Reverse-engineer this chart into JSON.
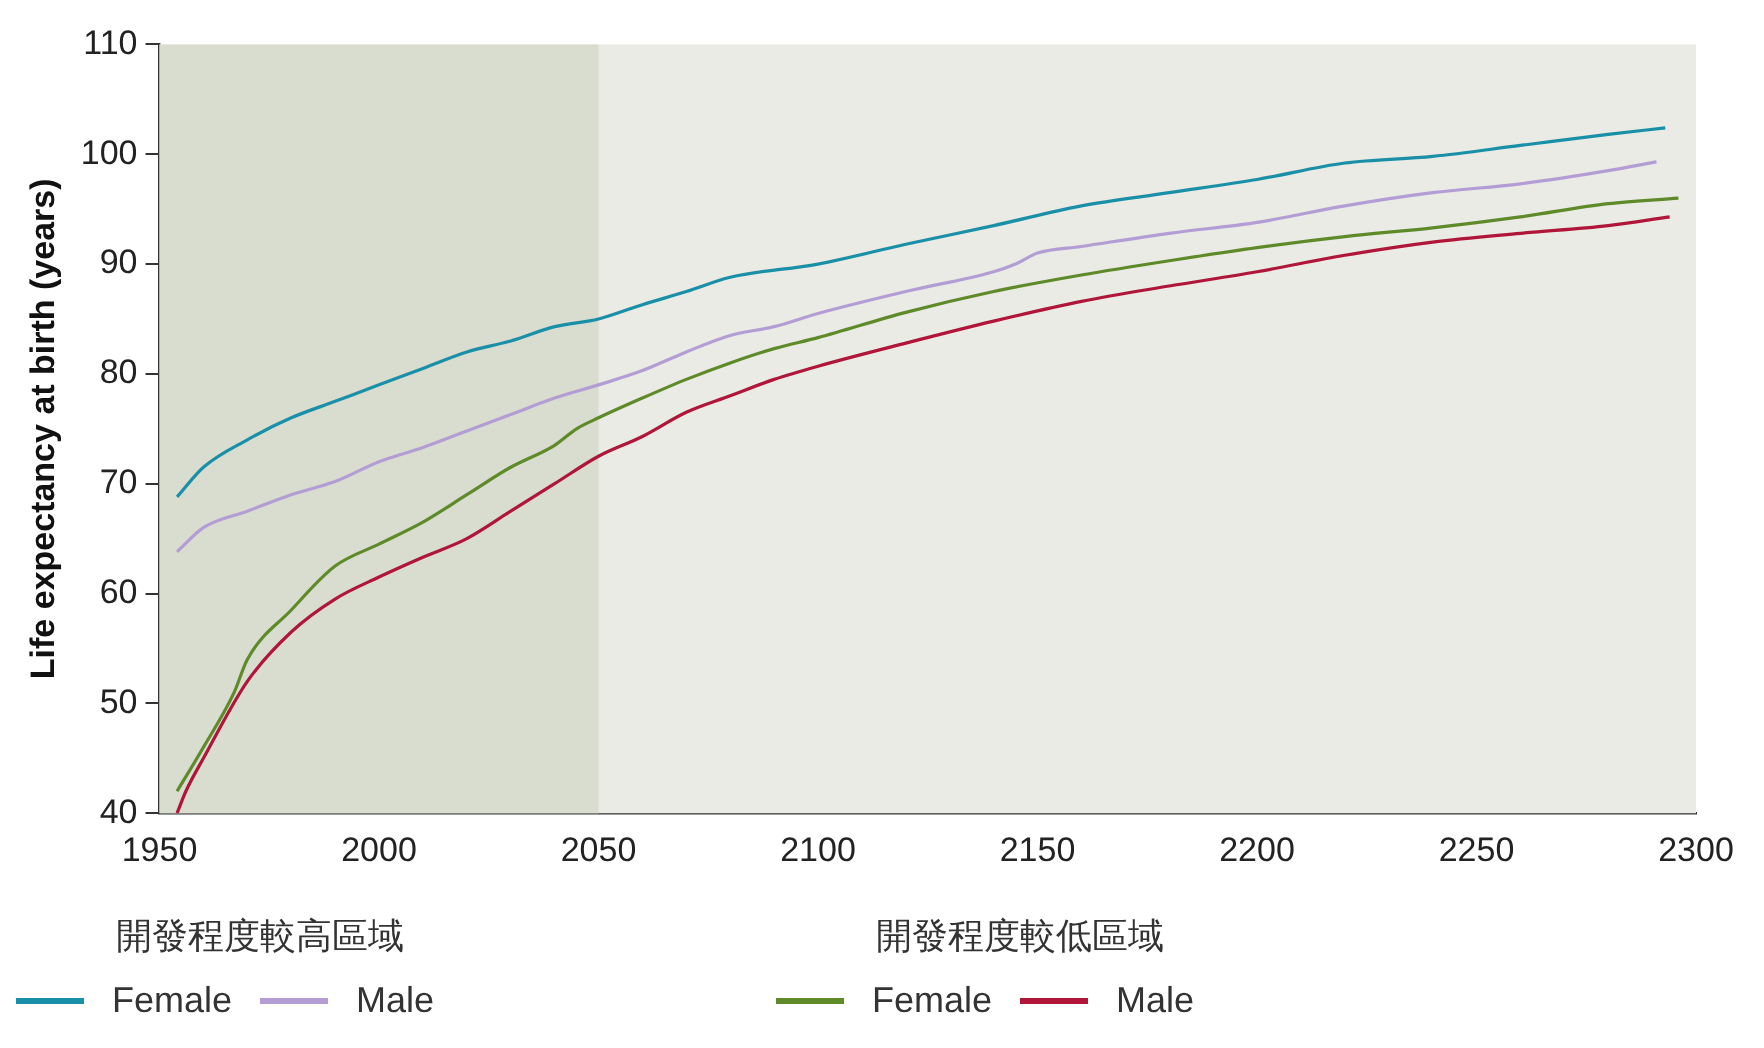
{
  "chart_data": {
    "type": "line",
    "ylabel": "Life expectancy at birth (years)",
    "xlim": [
      1950,
      2300
    ],
    "xticks": [
      1950,
      2000,
      2050,
      2100,
      2150,
      2200,
      2250,
      2300
    ],
    "ylim": [
      40,
      110
    ],
    "yticks": [
      40,
      50,
      60,
      70,
      80,
      90,
      100,
      110
    ],
    "grid": false,
    "legend": "bottom",
    "marker": "none",
    "line_style": "solid",
    "annotations": [
      "開發程度較高區域",
      "開發程度較低區域"
    ],
    "bands": [
      {
        "axis": "x",
        "from": 1950,
        "to": 2050,
        "color": "#d9ddcf"
      }
    ],
    "series": [
      {
        "name": "Female",
        "color": "#1a8fa8",
        "x": [
          1954,
          1960,
          1970,
          1980,
          1990,
          2000,
          2010,
          2020,
          2030,
          2040,
          2050,
          2060,
          2070,
          2080,
          2100,
          2120,
          2140,
          2160,
          2180,
          2200,
          2220,
          2240,
          2260,
          2280,
          2293
        ],
        "values": [
          68.8,
          71.5,
          74,
          76,
          77.5,
          79,
          80.5,
          82,
          83,
          84.3,
          85,
          86.3,
          87.5,
          88.8,
          90,
          91.8,
          93.5,
          95.3,
          96.5,
          97.7,
          99.2,
          99.8,
          100.8,
          101.8,
          102.4
        ]
      },
      {
        "name": "Male",
        "color": "#b39dd4",
        "x": [
          1954,
          1960,
          1970,
          1980,
          1990,
          2000,
          2010,
          2020,
          2030,
          2040,
          2050,
          2060,
          2070,
          2080,
          2090,
          2100,
          2120,
          2140,
          2145,
          2150,
          2160,
          2180,
          2200,
          2220,
          2240,
          2260,
          2280,
          2291
        ],
        "values": [
          63.8,
          66,
          67.5,
          69,
          70.2,
          72,
          73.3,
          74.8,
          76.3,
          77.8,
          79,
          80.3,
          82,
          83.5,
          84.3,
          85.5,
          87.5,
          89.3,
          90,
          91,
          91.6,
          92.8,
          93.8,
          95.3,
          96.5,
          97.3,
          98.5,
          99.3
        ]
      },
      {
        "name": "Female",
        "color": "#5e8a2a",
        "x": [
          1954,
          1960,
          1967,
          1970,
          1980,
          1990,
          2000,
          2010,
          2020,
          2030,
          2040,
          2045,
          2050,
          2060,
          2070,
          2080,
          2090,
          2100,
          2120,
          2140,
          2160,
          2180,
          2200,
          2220,
          2240,
          2260,
          2280,
          2296
        ],
        "values": [
          42,
          46,
          51,
          54,
          58.5,
          62.5,
          64.5,
          66.5,
          69,
          71.5,
          73.5,
          75,
          76,
          77.8,
          79.5,
          81,
          82.3,
          83.3,
          85.6,
          87.5,
          89,
          90.3,
          91.5,
          92.5,
          93.3,
          94.3,
          95.5,
          96
        ]
      },
      {
        "name": "Male",
        "color": "#b0153a",
        "x": [
          1954,
          1956,
          1960,
          1970,
          1980,
          1990,
          2000,
          2010,
          2020,
          2030,
          2040,
          2050,
          2060,
          2070,
          2080,
          2090,
          2100,
          2120,
          2140,
          2160,
          2180,
          2200,
          2220,
          2240,
          2260,
          2280,
          2294
        ],
        "values": [
          40,
          42,
          45,
          52,
          56.5,
          59.5,
          61.5,
          63.3,
          65,
          67.5,
          70,
          72.5,
          74.3,
          76.5,
          78,
          79.5,
          80.7,
          82.8,
          84.8,
          86.6,
          88,
          89.3,
          90.8,
          92,
          92.8,
          93.5,
          94.3
        ]
      }
    ]
  }
}
